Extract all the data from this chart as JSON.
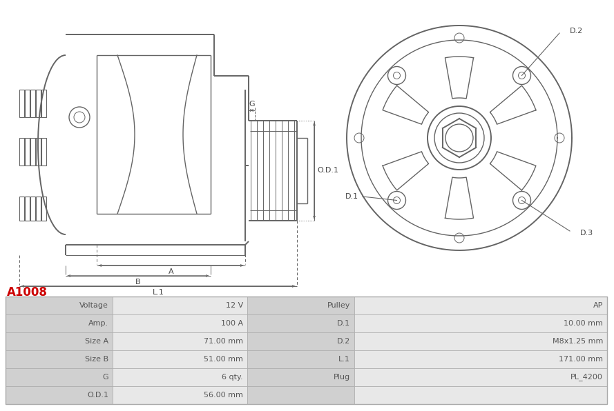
{
  "title": "A1008",
  "title_color": "#cc0000",
  "bg_color": "#ffffff",
  "table_data": [
    [
      "Voltage",
      "12 V",
      "Pulley",
      "AP"
    ],
    [
      "Amp.",
      "100 A",
      "D.1",
      "10.00 mm"
    ],
    [
      "Size A",
      "71.00 mm",
      "D.2",
      "M8x1.25 mm"
    ],
    [
      "Size B",
      "51.00 mm",
      "L.1",
      "171.00 mm"
    ],
    [
      "G",
      "6 qty.",
      "Plug",
      "PL_4200"
    ],
    [
      "O.D.1",
      "56.00 mm",
      "",
      ""
    ]
  ],
  "line_color": "#646464",
  "dim_color": "#646464",
  "table_label_bg": "#d0d0d0",
  "table_value_bg": "#e8e8e8",
  "table_border": "#aaaaaa",
  "table_text": "#555555"
}
